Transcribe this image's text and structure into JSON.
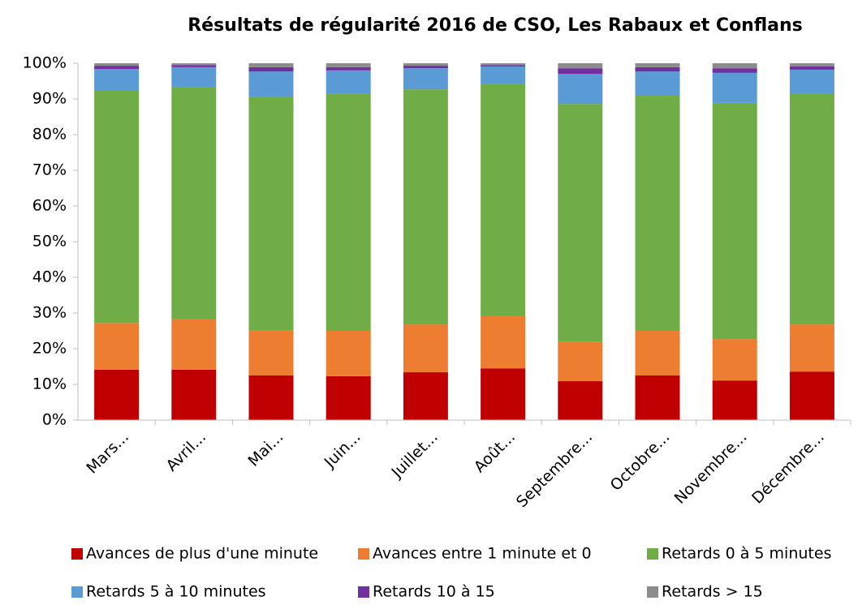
{
  "chart_data": {
    "type": "stacked_bar",
    "title": "Résultats de régularité 2016 de CSO, Les Rabaux et Conflans",
    "categories": [
      "Mars...",
      "Avril...",
      "Mai...",
      "Juin...",
      "Juillet...",
      "Août...",
      "Septembre...",
      "Octobre...",
      "Novembre...",
      "Décembre..."
    ],
    "series": [
      {
        "name": "Avances de plus d'une minute",
        "color": "#c00000",
        "values": [
          14.1,
          14.1,
          12.5,
          12.3,
          13.4,
          14.5,
          10.9,
          12.5,
          11.1,
          13.6
        ]
      },
      {
        "name": "Avances entre 1 minute et 0",
        "color": "#ed7d31",
        "values": [
          13.1,
          14.1,
          12.7,
          12.7,
          13.4,
          14.6,
          11.1,
          12.5,
          11.6,
          13.2
        ]
      },
      {
        "name": "Retards 0 à 5 minutes",
        "color": "#70ad47",
        "values": [
          65.3,
          65.2,
          65.5,
          66.4,
          65.9,
          65.2,
          66.6,
          65.9,
          66.2,
          64.8
        ]
      },
      {
        "name": "Retards 5 à 10 minutes",
        "color": "#5b9bd5",
        "values": [
          5.9,
          5.5,
          7.0,
          6.6,
          5.9,
          4.8,
          8.4,
          6.8,
          8.4,
          6.6
        ]
      },
      {
        "name": "Retards 10 à 15",
        "color": "#7030a0",
        "values": [
          0.9,
          0.6,
          1.2,
          0.9,
          0.7,
          0.4,
          1.6,
          1.2,
          1.3,
          0.9
        ]
      },
      {
        "name": "Retards > 15",
        "color": "#8c8c8c",
        "values": [
          0.7,
          0.5,
          1.1,
          1.1,
          0.7,
          0.5,
          1.4,
          1.1,
          1.4,
          0.9
        ]
      }
    ],
    "ylim": [
      0,
      100
    ],
    "yticks": [
      {
        "value": 0,
        "label": "0%"
      },
      {
        "value": 10,
        "label": "10%"
      },
      {
        "value": 20,
        "label": "20%"
      },
      {
        "value": 30,
        "label": "30%"
      },
      {
        "value": 40,
        "label": "40%"
      },
      {
        "value": 50,
        "label": "50%"
      },
      {
        "value": 60,
        "label": "60%"
      },
      {
        "value": 70,
        "label": "70%"
      },
      {
        "value": 80,
        "label": "80%"
      },
      {
        "value": 90,
        "label": "90%"
      },
      {
        "value": 100,
        "label": "100%"
      }
    ],
    "grid": false
  }
}
